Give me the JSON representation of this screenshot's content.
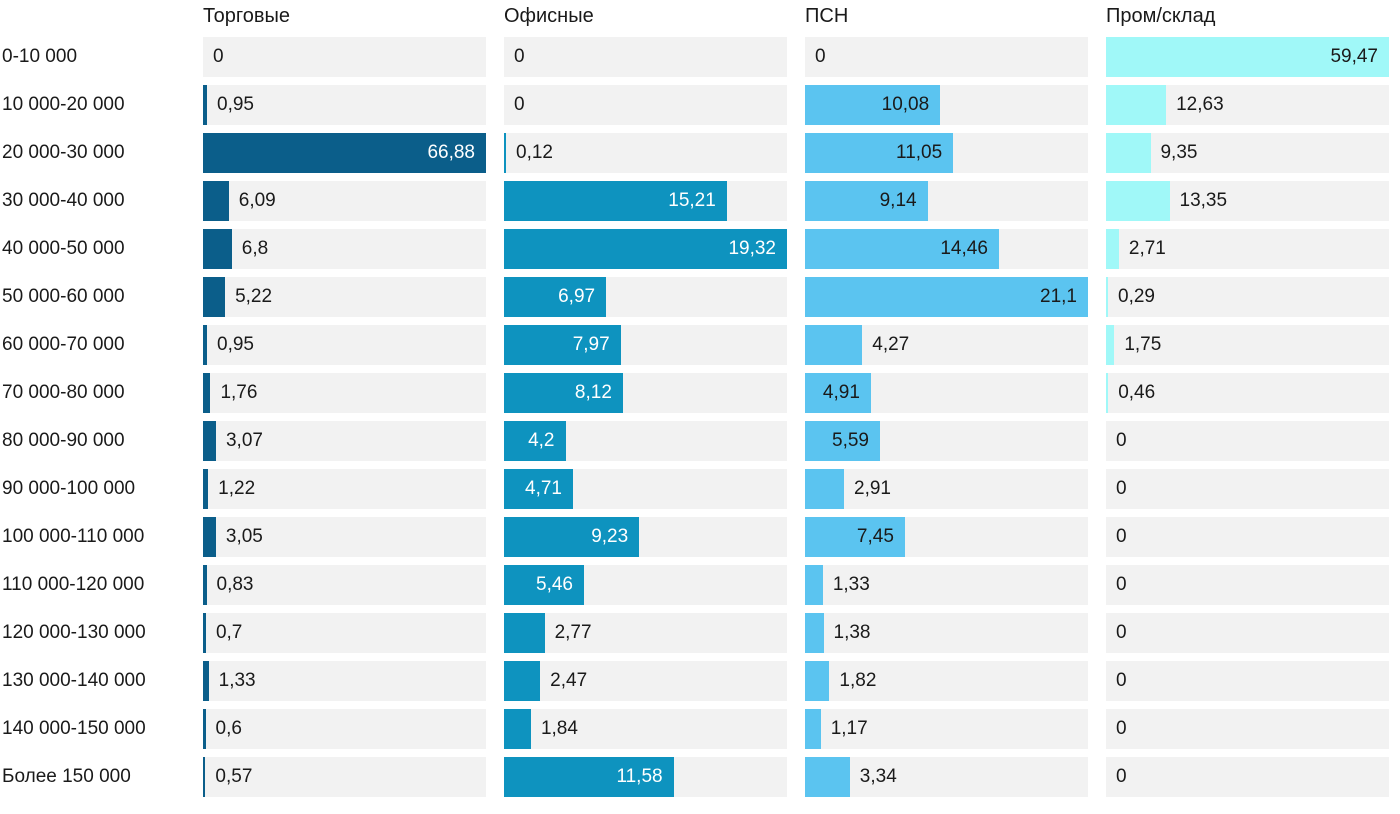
{
  "chart_data": {
    "type": "bar",
    "orientation": "horizontal",
    "title": "",
    "xlabel": "",
    "ylabel": "",
    "decimal_separator": ",",
    "track_color": "#F2F2F2",
    "text_color": "#1a1a1a",
    "scaling": "each column scaled to its own max value",
    "categories": [
      "0-10 000",
      "10 000-20 000",
      "20 000-30 000",
      "30 000-40 000",
      "40 000-50 000",
      "50 000-60 000",
      "60 000-70 000",
      "70 000-80 000",
      "80 000-90 000",
      "90 000-100 000",
      "100 000-110 000",
      "110 000-120 000",
      "120 000-130 000",
      "130 000-140 000",
      "140 000-150 000",
      "Более 150 000"
    ],
    "series": [
      {
        "name": "Торговые",
        "color": "#0B5E8A",
        "inside_label_color": "#ffffff",
        "values": [
          0,
          0.95,
          66.88,
          6.09,
          6.8,
          5.22,
          0.95,
          1.76,
          3.07,
          1.22,
          3.05,
          0.83,
          0.7,
          1.33,
          0.6,
          0.57
        ]
      },
      {
        "name": "Офисные",
        "color": "#0E93BF",
        "inside_label_color": "#ffffff",
        "values": [
          0,
          0,
          0.12,
          15.21,
          19.32,
          6.97,
          7.97,
          8.12,
          4.2,
          4.71,
          9.23,
          5.46,
          2.77,
          2.47,
          1.84,
          11.58
        ]
      },
      {
        "name": "ПСН",
        "color": "#5BC4F0",
        "inside_label_color": "#1a1a1a",
        "values": [
          0,
          10.08,
          11.05,
          9.14,
          14.46,
          21.1,
          4.27,
          4.91,
          5.59,
          2.91,
          7.45,
          1.33,
          1.38,
          1.82,
          1.17,
          3.34
        ]
      },
      {
        "name": "Пром/склад",
        "color": "#A0F8F8",
        "inside_label_color": "#1a1a1a",
        "values": [
          59.47,
          12.63,
          9.35,
          13.35,
          2.71,
          0.29,
          1.75,
          0.46,
          0,
          0,
          0,
          0,
          0,
          0,
          0,
          0
        ]
      }
    ]
  }
}
